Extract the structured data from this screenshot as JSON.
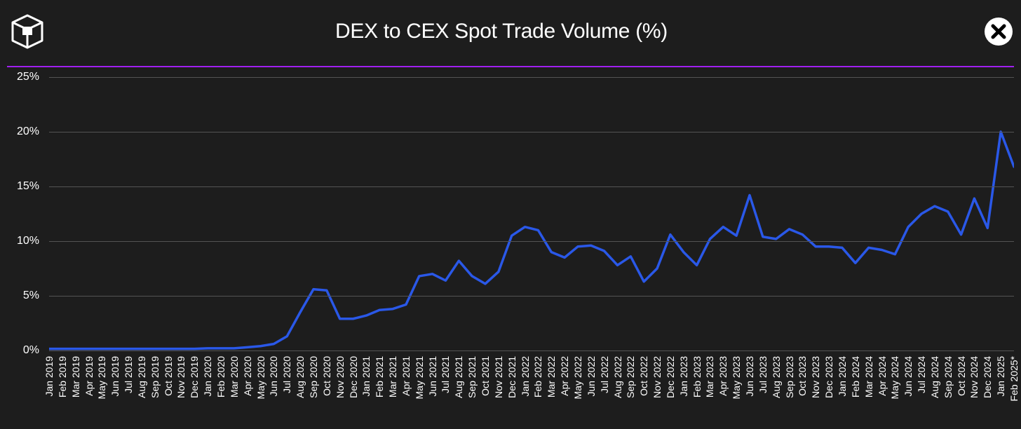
{
  "chart": {
    "type": "line",
    "title": "DEX to CEX Spot Trade Volume (%)",
    "title_fontsize": 30,
    "background_color": "#1d1d1d",
    "grid_color": "#545454",
    "text_color": "#ffffff",
    "accent_divider_color": "#a020f0",
    "line_color": "#2a58e8",
    "line_width": 3.5,
    "ylim": [
      0,
      25
    ],
    "ytick_step": 5,
    "y_ticks": [
      "0%",
      "5%",
      "10%",
      "15%",
      "20%",
      "25%"
    ],
    "y_tick_values": [
      0,
      5,
      10,
      15,
      20,
      25
    ],
    "x_labels": [
      "Jan 2019",
      "Feb 2019",
      "Mar 2019",
      "Apr 2019",
      "May 2019",
      "Jun 2019",
      "Jul 2019",
      "Aug 2019",
      "Sep 2019",
      "Oct 2019",
      "Nov 2019",
      "Dec 2019",
      "Jan 2020",
      "Feb 2020",
      "Mar 2020",
      "Apr 2020",
      "May 2020",
      "Jun 2020",
      "Jul 2020",
      "Aug 2020",
      "Sep 2020",
      "Oct 2020",
      "Nov 2020",
      "Dec 2020",
      "Jan 2021",
      "Feb 2021",
      "Mar 2021",
      "Apr 2021",
      "May 2021",
      "Jun 2021",
      "Jul 2021",
      "Aug 2021",
      "Sep 2021",
      "Oct 2021",
      "Nov 2021",
      "Dec 2021",
      "Jan 2022",
      "Feb 2022",
      "Mar 2022",
      "Apr 2022",
      "May 2022",
      "Jun 2022",
      "Jul 2022",
      "Aug 2022",
      "Sep 2022",
      "Oct 2022",
      "Nov 2022",
      "Dec 2022",
      "Jan 2023",
      "Feb 2023",
      "Mar 2023",
      "Apr 2023",
      "May 2023",
      "Jun 2023",
      "Jul 2023",
      "Aug 2023",
      "Sep 2023",
      "Oct 2023",
      "Nov 2023",
      "Dec 2023",
      "Jan 2024",
      "Feb 2024",
      "Mar 2024",
      "Apr 2024",
      "May 2024",
      "Jun 2024",
      "Jul 2024",
      "Aug 2024",
      "Sep 2024",
      "Oct 2024",
      "Nov 2024",
      "Dec 2024",
      "Jan 2025",
      "Feb 2025*"
    ],
    "values": [
      0.15,
      0.15,
      0.15,
      0.15,
      0.15,
      0.15,
      0.15,
      0.15,
      0.15,
      0.15,
      0.15,
      0.15,
      0.2,
      0.2,
      0.2,
      0.3,
      0.4,
      0.6,
      1.3,
      3.5,
      5.6,
      5.5,
      2.9,
      2.9,
      3.2,
      3.7,
      3.8,
      4.2,
      6.8,
      7.0,
      6.4,
      8.2,
      6.8,
      6.1,
      7.2,
      10.5,
      11.3,
      11.0,
      9.0,
      8.5,
      9.5,
      9.6,
      9.1,
      7.8,
      8.6,
      6.3,
      7.5,
      10.6,
      9.0,
      7.8,
      10.2,
      11.3,
      10.5,
      14.2,
      10.4,
      10.2,
      11.1,
      10.6,
      9.5,
      9.5,
      9.4,
      8.0,
      9.4,
      9.2,
      8.8,
      11.3,
      12.5,
      13.2,
      12.7,
      10.6,
      13.9,
      11.2,
      20.0,
      16.8
    ],
    "x_label_fontsize": 14,
    "y_label_fontsize": 16
  }
}
